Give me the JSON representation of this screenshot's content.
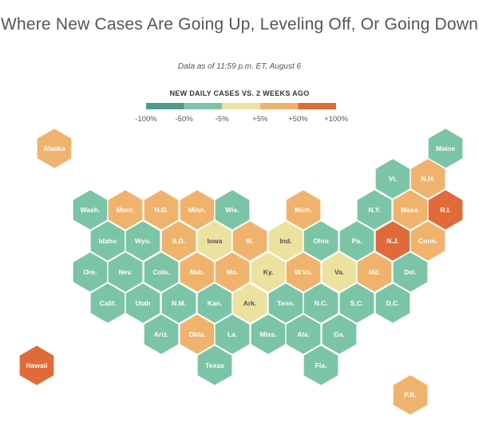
{
  "title": "Where New Cases Are Going Up, Leveling Off, Or Going Down",
  "subtitle": "Data as of 11:59 p.m. ET, August 6",
  "legend": {
    "title": "NEW DAILY CASES VS. 2 WEEKS AGO",
    "ticks": [
      "-100%",
      "-50%",
      "-5%",
      "+5%",
      "+50%",
      "+100%"
    ],
    "colors": [
      "#4e9a8b",
      "#7cc4a6",
      "#ece29f",
      "#f0b36e",
      "#e06a3a"
    ]
  },
  "colors": {
    "down-strong": "#4e9a8b",
    "down": "#7cc4a6",
    "level": "#ece29f",
    "up": "#f0b36e",
    "up-strong": "#e06a3a"
  },
  "chart_data": {
    "type": "hex-tile-map",
    "title": "Where New Cases Are Going Up, Leveling Off, Or Going Down",
    "subtitle": "Data as of 11:59 p.m. ET, August 6",
    "legend_title": "NEW DAILY CASES VS. 2 WEEKS AGO",
    "categories": [
      "down-strong",
      "down",
      "level",
      "up",
      "up-strong"
    ],
    "states": [
      {
        "label": "Alaska",
        "status": "up"
      },
      {
        "label": "Maine",
        "status": "down"
      },
      {
        "label": "Vt.",
        "status": "down"
      },
      {
        "label": "N.H.",
        "status": "up"
      },
      {
        "label": "Wash.",
        "status": "down"
      },
      {
        "label": "Mont.",
        "status": "up"
      },
      {
        "label": "N.D.",
        "status": "up"
      },
      {
        "label": "Minn.",
        "status": "up"
      },
      {
        "label": "Wis.",
        "status": "down"
      },
      {
        "label": "Mich.",
        "status": "up"
      },
      {
        "label": "N.Y.",
        "status": "down"
      },
      {
        "label": "Mass.",
        "status": "up"
      },
      {
        "label": "R.I.",
        "status": "up-strong"
      },
      {
        "label": "Idaho",
        "status": "down"
      },
      {
        "label": "Wyo.",
        "status": "down"
      },
      {
        "label": "S.D.",
        "status": "up"
      },
      {
        "label": "Iowa",
        "status": "level"
      },
      {
        "label": "Ill.",
        "status": "up"
      },
      {
        "label": "Ind.",
        "status": "level"
      },
      {
        "label": "Ohio",
        "status": "down"
      },
      {
        "label": "Pa.",
        "status": "down"
      },
      {
        "label": "N.J.",
        "status": "up-strong"
      },
      {
        "label": "Conn.",
        "status": "up"
      },
      {
        "label": "Ore.",
        "status": "down"
      },
      {
        "label": "Nev.",
        "status": "down"
      },
      {
        "label": "Colo.",
        "status": "down"
      },
      {
        "label": "Neb.",
        "status": "up"
      },
      {
        "label": "Mo.",
        "status": "up"
      },
      {
        "label": "Ky.",
        "status": "level"
      },
      {
        "label": "W.Va.",
        "status": "up"
      },
      {
        "label": "Va.",
        "status": "level"
      },
      {
        "label": "Md.",
        "status": "up"
      },
      {
        "label": "Del.",
        "status": "down"
      },
      {
        "label": "Calif.",
        "status": "down"
      },
      {
        "label": "Utah",
        "status": "down"
      },
      {
        "label": "N.M.",
        "status": "down"
      },
      {
        "label": "Kan.",
        "status": "down"
      },
      {
        "label": "Ark.",
        "status": "level"
      },
      {
        "label": "Tenn.",
        "status": "down"
      },
      {
        "label": "N.C.",
        "status": "down"
      },
      {
        "label": "S.C.",
        "status": "down"
      },
      {
        "label": "D.C.",
        "status": "down"
      },
      {
        "label": "Ariz.",
        "status": "down"
      },
      {
        "label": "Okla.",
        "status": "up"
      },
      {
        "label": "La.",
        "status": "down"
      },
      {
        "label": "Miss.",
        "status": "down"
      },
      {
        "label": "Ala.",
        "status": "down"
      },
      {
        "label": "Ga.",
        "status": "down"
      },
      {
        "label": "Hawaii",
        "status": "up-strong"
      },
      {
        "label": "Texas",
        "status": "down"
      },
      {
        "label": "Fla.",
        "status": "down"
      },
      {
        "label": "P.R.",
        "status": "up"
      }
    ]
  }
}
